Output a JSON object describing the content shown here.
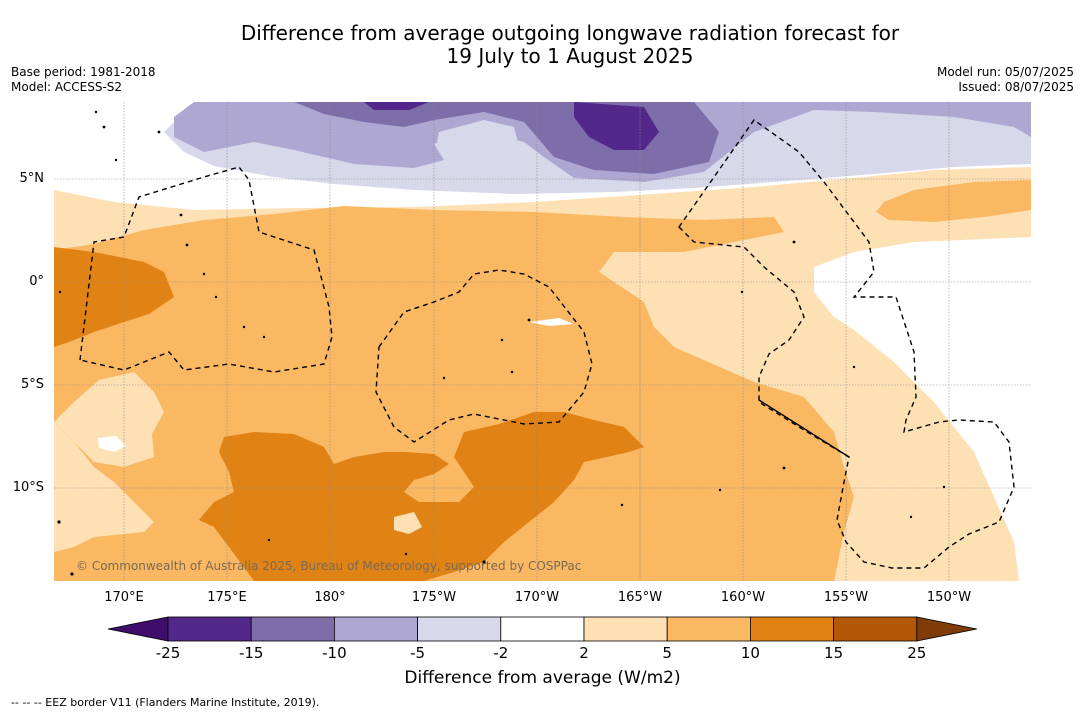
{
  "title": {
    "line1": "Difference from average outgoing longwave radiation forecast for",
    "line2": "19 July to 1 August 2025"
  },
  "meta": {
    "base_period": "Base period: 1981-2018",
    "model": "Model: ACCESS-S2",
    "model_run": "Model run: 05/07/2025",
    "issued": "Issued: 08/07/2025"
  },
  "map": {
    "lat_labels": [
      "5°N",
      "0°",
      "5°S",
      "10°S"
    ],
    "lon_labels": [
      "170°E",
      "175°E",
      "180°",
      "175°W",
      "170°W",
      "165°W",
      "160°W",
      "155°W",
      "150°W"
    ],
    "copyright": "© Commonwealth of Australia 2025, Bureau of Meteorology, supported by COSPPac"
  },
  "colorbar": {
    "title": "Difference from average (W/m2)",
    "ticks": [
      "-25",
      "-15",
      "-10",
      "-5",
      "-2",
      "2",
      "5",
      "10",
      "15",
      "25"
    ],
    "colors": [
      "#3f0d6b",
      "#54288a",
      "#7d6eaa",
      "#aea7d2",
      "#d8d8eb",
      "#ffffff",
      "#fde0b4",
      "#fab862",
      "#e08214",
      "#b35806",
      "#7f3b08"
    ]
  },
  "legend_note": "--  --  -- EEZ border V11 (Flanders Marine Institute, 2019)."
}
